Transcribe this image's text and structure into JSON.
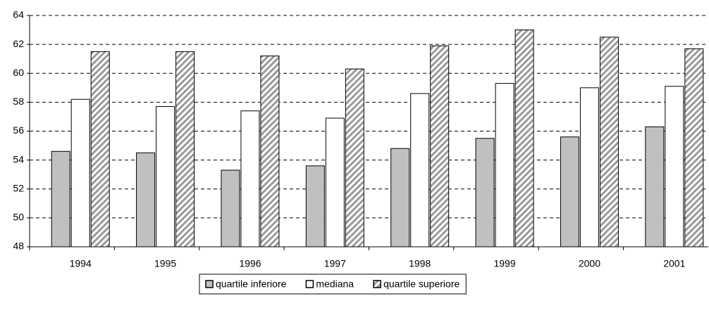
{
  "chart_data": {
    "type": "bar",
    "categories": [
      "1994",
      "1995",
      "1996",
      "1997",
      "1998",
      "1999",
      "2000",
      "2001"
    ],
    "series": [
      {
        "name": "quartile inferiore",
        "color": "#c0c0c0",
        "values": [
          54.6,
          54.5,
          53.3,
          53.6,
          54.8,
          55.5,
          55.6,
          56.3
        ]
      },
      {
        "name": "mediana",
        "color": "#ffffff",
        "values": [
          58.2,
          57.7,
          57.4,
          56.9,
          58.6,
          59.3,
          59.0,
          59.1
        ]
      },
      {
        "name": "quartile superiore",
        "color": "#9a9a9a",
        "pattern": "diagonal",
        "values": [
          61.5,
          61.5,
          61.2,
          60.3,
          61.9,
          63.0,
          62.5,
          61.7
        ]
      }
    ],
    "ylim": [
      48,
      64
    ],
    "yticks": [
      48,
      50,
      52,
      54,
      56,
      58,
      60,
      62,
      64
    ],
    "grid": true,
    "legend": "bottom"
  }
}
